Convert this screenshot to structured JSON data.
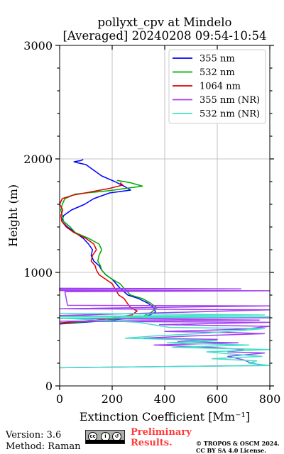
{
  "header": {
    "title_line1": "pollyxt_cpv at Mindelo",
    "title_line2": "[Averaged] 20240208 09:54-10:54"
  },
  "footer": {
    "version": "Version: 3.6",
    "method": "Method: Raman",
    "preliminary_line1": "Preliminary",
    "preliminary_line2": "Results.",
    "license_line1": "© TROPOS & OSCM 2024.",
    "license_line2": "CC BY SA 4.0 License.",
    "cc_badge_text": "BY SA"
  },
  "chart_data": {
    "type": "line",
    "xlabel": "Extinction Coefficient [Mm⁻¹]",
    "ylabel": "Height (m)",
    "xlim": [
      0,
      800
    ],
    "ylim": [
      0,
      3000
    ],
    "xticks": [
      0,
      200,
      400,
      600,
      800
    ],
    "yticks": [
      0,
      1000,
      2000,
      3000
    ],
    "grid": true,
    "legend_position": "top-right",
    "series": [
      {
        "name": "355 nm",
        "color": "#0000ff",
        "points": [
          [
            0,
            545
          ],
          [
            120,
            565
          ],
          [
            220,
            585
          ],
          [
            310,
            605
          ],
          [
            345,
            625
          ],
          [
            365,
            650
          ],
          [
            358,
            690
          ],
          [
            335,
            730
          ],
          [
            300,
            770
          ],
          [
            260,
            800
          ],
          [
            230,
            860
          ],
          [
            215,
            900
          ],
          [
            200,
            940
          ],
          [
            175,
            980
          ],
          [
            160,
            1020
          ],
          [
            150,
            1060
          ],
          [
            130,
            1100
          ],
          [
            120,
            1150
          ],
          [
            125,
            1200
          ],
          [
            110,
            1250
          ],
          [
            90,
            1300
          ],
          [
            60,
            1350
          ],
          [
            30,
            1400
          ],
          [
            8,
            1450
          ],
          [
            15,
            1500
          ],
          [
            45,
            1550
          ],
          [
            95,
            1600
          ],
          [
            130,
            1650
          ],
          [
            190,
            1700
          ],
          [
            270,
            1725
          ],
          [
            245,
            1760
          ],
          [
            210,
            1800
          ],
          [
            160,
            1850
          ],
          [
            130,
            1900
          ],
          [
            100,
            1950
          ],
          [
            70,
            1965
          ],
          [
            55,
            1975
          ],
          [
            80,
            1985
          ],
          [
            90,
            1995
          ]
        ]
      },
      {
        "name": "532 nm",
        "color": "#00aa00",
        "points": [
          [
            0,
            550
          ],
          [
            110,
            568
          ],
          [
            230,
            590
          ],
          [
            320,
            615
          ],
          [
            350,
            650
          ],
          [
            370,
            690
          ],
          [
            345,
            730
          ],
          [
            315,
            770
          ],
          [
            270,
            800
          ],
          [
            245,
            860
          ],
          [
            230,
            900
          ],
          [
            200,
            940
          ],
          [
            175,
            980
          ],
          [
            160,
            1020
          ],
          [
            155,
            1060
          ],
          [
            145,
            1100
          ],
          [
            150,
            1150
          ],
          [
            160,
            1200
          ],
          [
            150,
            1250
          ],
          [
            110,
            1300
          ],
          [
            60,
            1350
          ],
          [
            40,
            1400
          ],
          [
            15,
            1450
          ],
          [
            10,
            1500
          ],
          [
            5,
            1550
          ],
          [
            10,
            1600
          ],
          [
            20,
            1650
          ],
          [
            60,
            1690
          ],
          [
            190,
            1720
          ],
          [
            315,
            1760
          ],
          [
            270,
            1790
          ],
          [
            220,
            1810
          ],
          [
            240,
            1800
          ]
        ]
      },
      {
        "name": "1064 nm",
        "color": "#dd0000",
        "points": [
          [
            0,
            555
          ],
          [
            120,
            575
          ],
          [
            190,
            595
          ],
          [
            275,
            625
          ],
          [
            295,
            660
          ],
          [
            270,
            690
          ],
          [
            260,
            720
          ],
          [
            245,
            770
          ],
          [
            225,
            800
          ],
          [
            210,
            860
          ],
          [
            200,
            900
          ],
          [
            175,
            940
          ],
          [
            150,
            980
          ],
          [
            140,
            1020
          ],
          [
            135,
            1060
          ],
          [
            120,
            1100
          ],
          [
            125,
            1150
          ],
          [
            140,
            1200
          ],
          [
            130,
            1250
          ],
          [
            100,
            1300
          ],
          [
            55,
            1350
          ],
          [
            25,
            1400
          ],
          [
            8,
            1450
          ],
          [
            5,
            1500
          ],
          [
            12,
            1550
          ],
          [
            0,
            1600
          ],
          [
            10,
            1650
          ],
          [
            50,
            1680
          ],
          [
            120,
            1710
          ],
          [
            190,
            1740
          ],
          [
            240,
            1770
          ],
          [
            230,
            1790
          ]
        ]
      },
      {
        "name": "355 nm (NR)",
        "color": "#a040f0",
        "points": [
          [
            0,
            850
          ],
          [
            690,
            855
          ],
          [
            0,
            860
          ],
          [
            0,
            840
          ],
          [
            800,
            838
          ],
          [
            20,
            830
          ],
          [
            30,
            710
          ],
          [
            800,
            705
          ],
          [
            0,
            680
          ],
          [
            800,
            670
          ],
          [
            0,
            620
          ],
          [
            330,
            610
          ],
          [
            800,
            600
          ],
          [
            0,
            595
          ],
          [
            760,
            580
          ],
          [
            0,
            570
          ],
          [
            800,
            560
          ],
          [
            380,
            540
          ],
          [
            800,
            525
          ],
          [
            700,
            500
          ],
          [
            400,
            480
          ],
          [
            650,
            470
          ],
          [
            780,
            460
          ],
          [
            500,
            440
          ],
          [
            320,
            420
          ],
          [
            600,
            410
          ],
          [
            450,
            390
          ],
          [
            680,
            380
          ],
          [
            360,
            360
          ],
          [
            580,
            340
          ],
          [
            700,
            320
          ],
          [
            640,
            300
          ],
          [
            780,
            290
          ],
          [
            640,
            260
          ],
          [
            700,
            230
          ],
          [
            720,
            210
          ],
          [
            770,
            180
          ],
          [
            0,
            160
          ]
        ]
      },
      {
        "name": "532 nm (NR)",
        "color": "#40e0c8",
        "points": [
          [
            0,
            640
          ],
          [
            780,
            625
          ],
          [
            0,
            612
          ],
          [
            800,
            608
          ],
          [
            0,
            598
          ],
          [
            300,
            560
          ],
          [
            420,
            515
          ],
          [
            780,
            505
          ],
          [
            530,
            460
          ],
          [
            360,
            440
          ],
          [
            250,
            420
          ],
          [
            600,
            400
          ],
          [
            410,
            380
          ],
          [
            720,
            360
          ],
          [
            430,
            340
          ],
          [
            800,
            320
          ],
          [
            560,
            300
          ],
          [
            660,
            280
          ],
          [
            770,
            260
          ],
          [
            580,
            240
          ],
          [
            750,
            220
          ],
          [
            720,
            200
          ],
          [
            800,
            180
          ],
          [
            0,
            160
          ]
        ]
      }
    ]
  }
}
